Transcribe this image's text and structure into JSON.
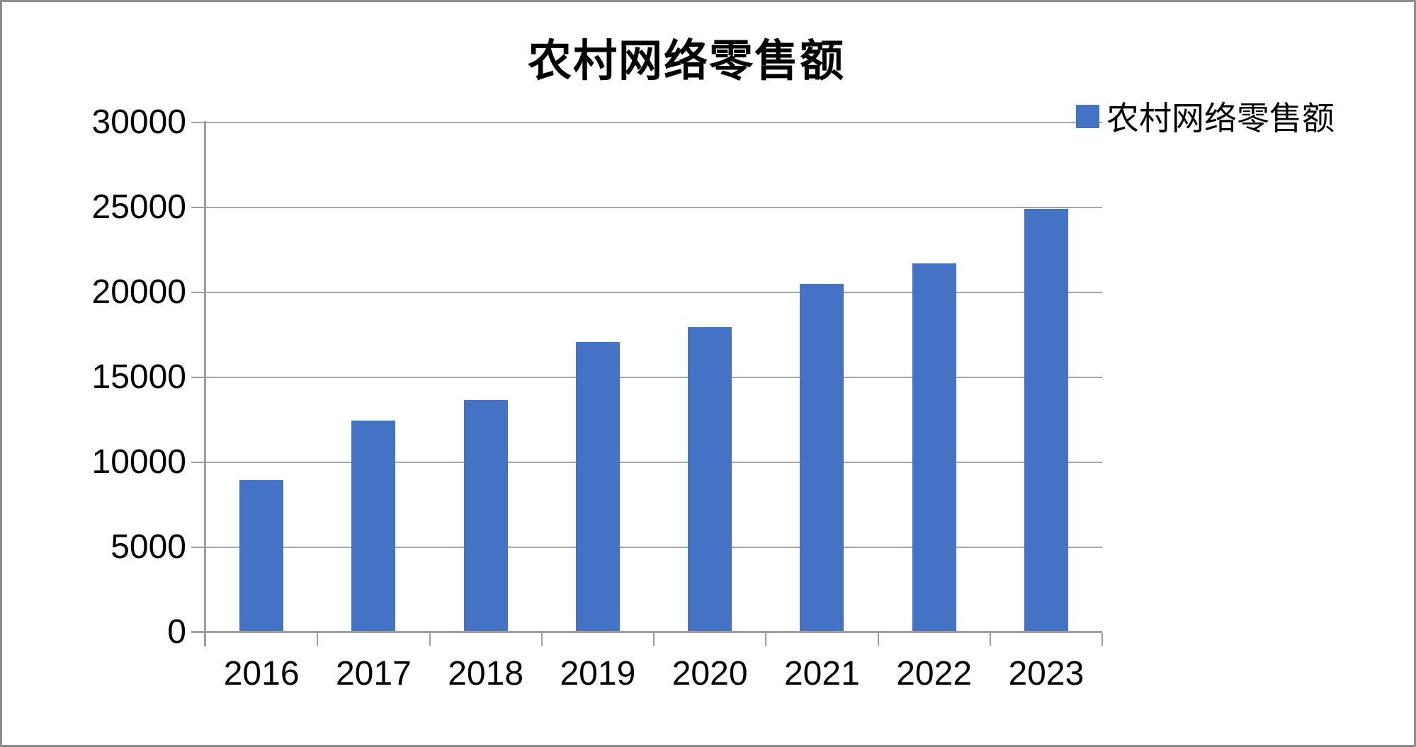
{
  "chart_data": {
    "type": "bar",
    "title": "农村网络零售额",
    "categories": [
      "2016",
      "2017",
      "2018",
      "2019",
      "2020",
      "2021",
      "2022",
      "2023"
    ],
    "series": [
      {
        "name": "农村网络零售额",
        "values": [
          8945,
          12449,
          13679,
          17083,
          17945,
          20500,
          21700,
          24900
        ]
      }
    ],
    "xlabel": "",
    "ylabel": "",
    "ylim": [
      0,
      30000
    ],
    "yticks": [
      0,
      5000,
      10000,
      15000,
      20000,
      25000,
      30000
    ],
    "grid": true,
    "legend_position": "top-right",
    "colors": {
      "bar_fill": "#4472C4",
      "gridline": "#A6A6A6",
      "axis_line": "#9E9E9E",
      "text": "#000000",
      "frame_border": "#8E8E8E"
    }
  },
  "legend": {
    "label": "农村网络零售额"
  }
}
